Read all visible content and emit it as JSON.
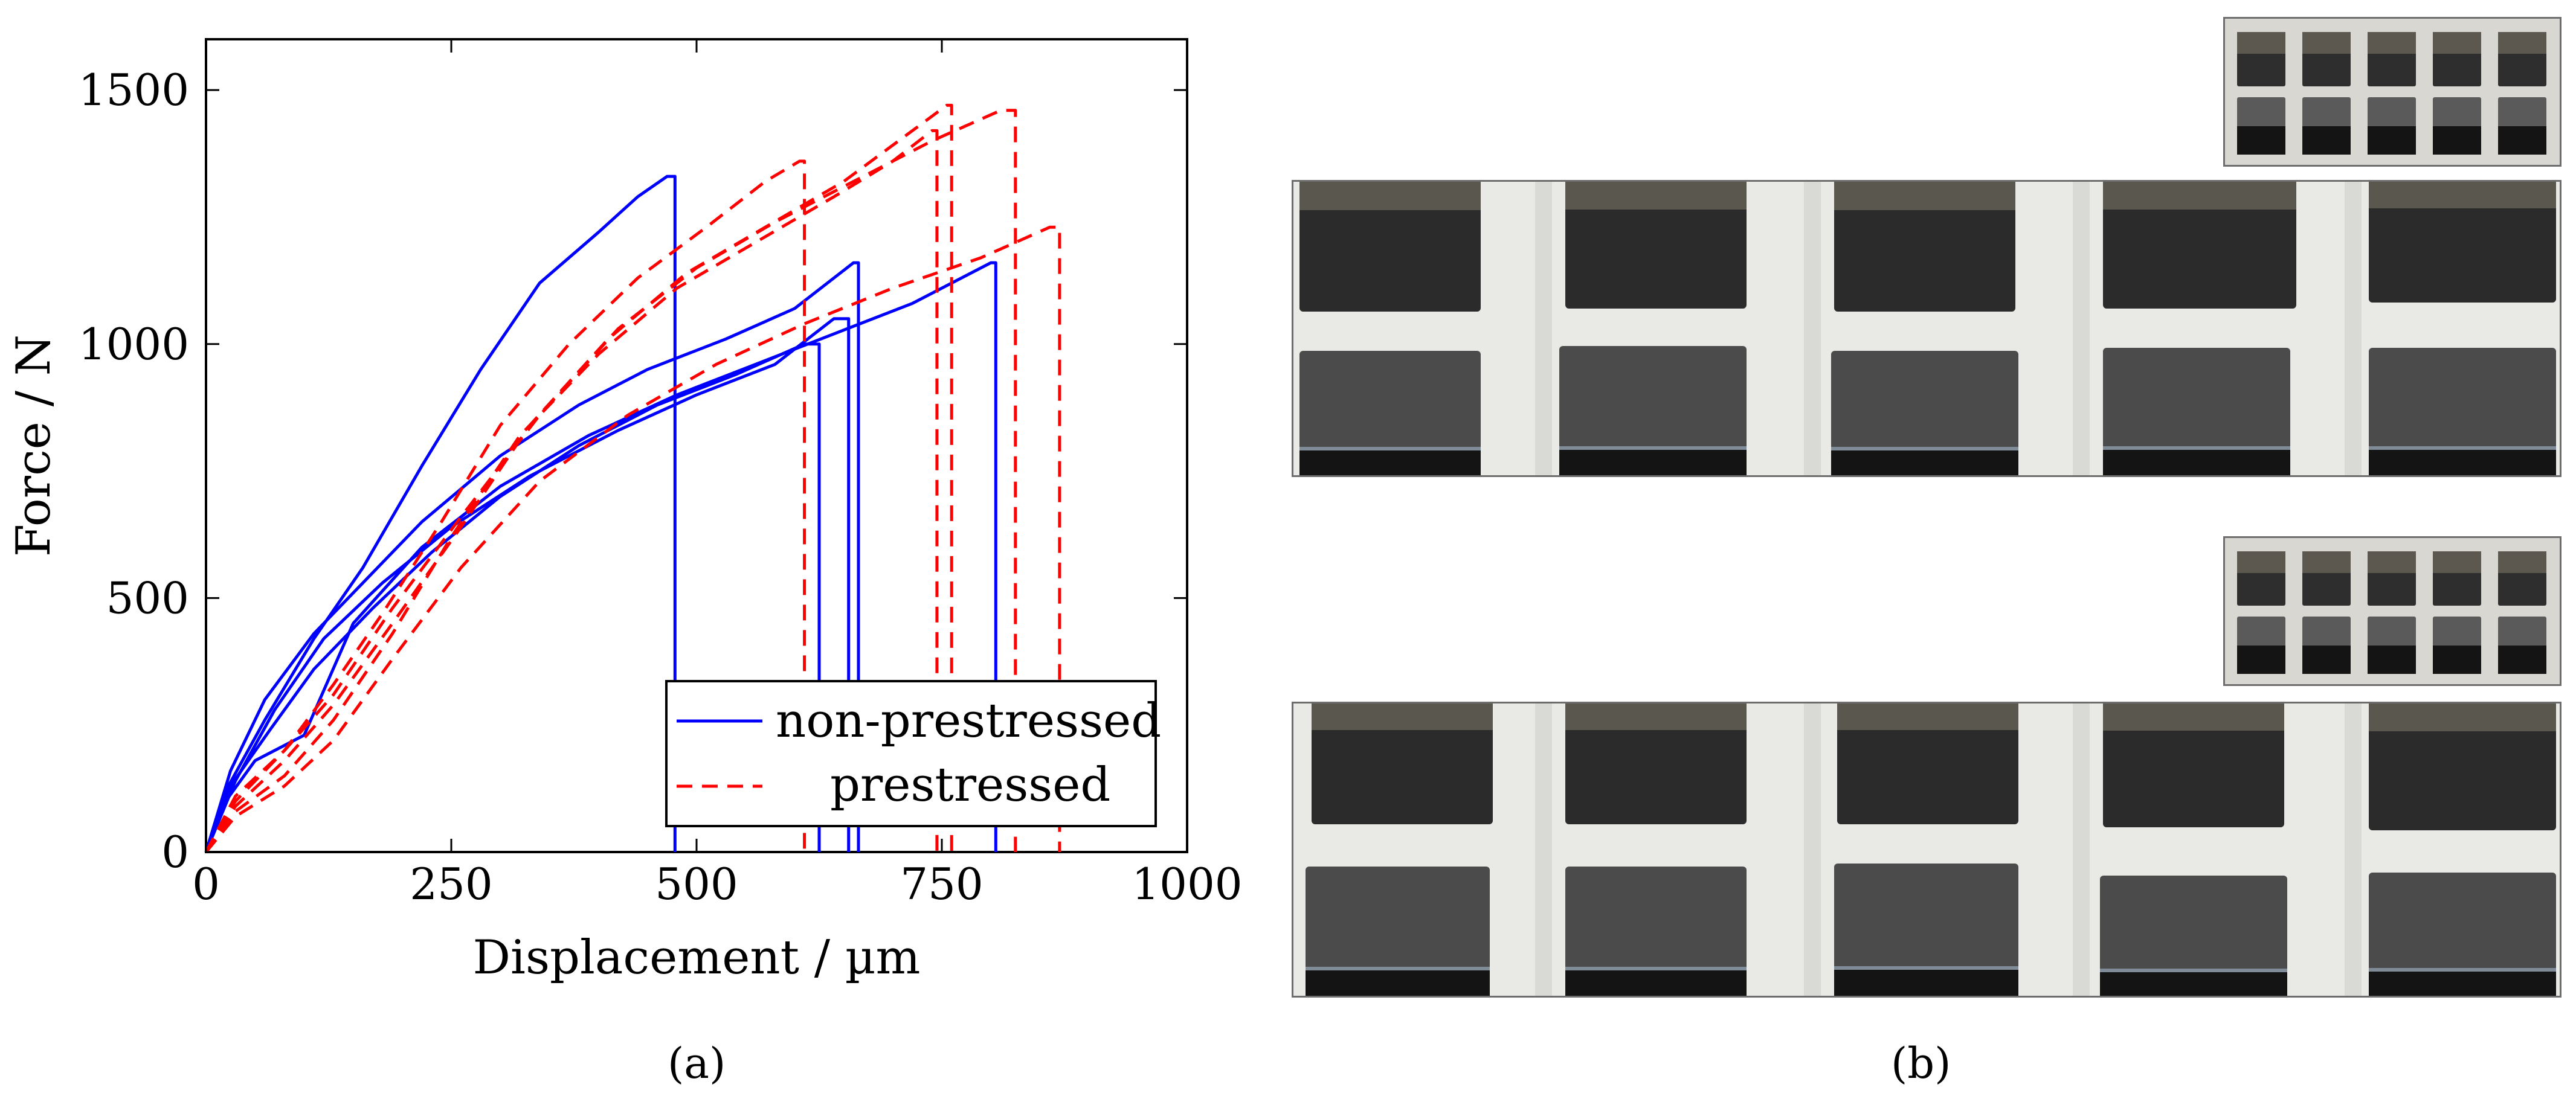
{
  "chart_data": {
    "type": "line",
    "xlabel": "Displacement / µm",
    "ylabel": "Force / N",
    "xlim": [
      0,
      1000
    ],
    "ylim": [
      0,
      1600
    ],
    "xticks": [
      0,
      250,
      500,
      750,
      1000
    ],
    "yticks": [
      0,
      500,
      1000,
      1500
    ],
    "grid": false,
    "legend_position": "bottom-right",
    "legend": [
      "non-prestressed",
      "prestressed"
    ],
    "colors": {
      "non_prestressed": "#0000ff",
      "prestressed": "#ff0000"
    },
    "series": [
      {
        "name": "non-prestressed",
        "group": "non-prestressed",
        "x": [
          0,
          20,
          60,
          110,
          160,
          220,
          280,
          340,
          400,
          440,
          470,
          478,
          478
        ],
        "y": [
          0,
          120,
          260,
          420,
          560,
          760,
          950,
          1120,
          1220,
          1290,
          1330,
          1330,
          0
        ]
      },
      {
        "name": "non-prestressed",
        "group": "non-prestressed",
        "x": [
          0,
          25,
          60,
          110,
          160,
          220,
          300,
          380,
          450,
          530,
          600,
          660,
          665,
          665
        ],
        "y": [
          0,
          160,
          300,
          430,
          530,
          650,
          780,
          880,
          950,
          1010,
          1070,
          1160,
          1160,
          0
        ]
      },
      {
        "name": "non-prestressed",
        "group": "non-prestressed",
        "x": [
          0,
          30,
          70,
          120,
          180,
          250,
          330,
          420,
          500,
          580,
          640,
          655,
          655
        ],
        "y": [
          0,
          140,
          280,
          420,
          530,
          640,
          740,
          830,
          900,
          960,
          1050,
          1050,
          0
        ]
      },
      {
        "name": "non-prestressed",
        "group": "non-prestressed",
        "x": [
          0,
          25,
          65,
          110,
          170,
          230,
          300,
          380,
          460,
          540,
          610,
          625,
          625
        ],
        "y": [
          0,
          130,
          240,
          360,
          480,
          590,
          700,
          800,
          880,
          940,
          1000,
          1000,
          0
        ]
      },
      {
        "name": "non-prestressed",
        "group": "non-prestressed",
        "x": [
          0,
          20,
          50,
          100,
          150,
          220,
          300,
          390,
          480,
          560,
          640,
          720,
          800,
          805,
          805
        ],
        "y": [
          0,
          100,
          180,
          230,
          450,
          600,
          720,
          820,
          900,
          960,
          1020,
          1080,
          1160,
          1160,
          0
        ]
      },
      {
        "name": "prestressed",
        "group": "prestressed",
        "x": [
          0,
          30,
          80,
          130,
          180,
          240,
          300,
          370,
          440,
          510,
          570,
          605,
          610,
          610
        ],
        "y": [
          0,
          100,
          200,
          330,
          470,
          650,
          840,
          1000,
          1130,
          1230,
          1320,
          1360,
          1360,
          0
        ]
      },
      {
        "name": "prestressed",
        "group": "prestressed",
        "x": [
          0,
          30,
          80,
          130,
          190,
          250,
          320,
          400,
          480,
          560,
          640,
          700,
          740,
          745,
          745
        ],
        "y": [
          0,
          80,
          150,
          260,
          430,
          620,
          820,
          980,
          1110,
          1200,
          1290,
          1360,
          1420,
          1420,
          0
        ]
      },
      {
        "name": "prestressed",
        "group": "prestressed",
        "x": [
          0,
          30,
          80,
          130,
          190,
          260,
          330,
          410,
          490,
          570,
          650,
          720,
          755,
          760,
          760
        ],
        "y": [
          0,
          90,
          180,
          290,
          450,
          640,
          840,
          1010,
          1140,
          1230,
          1320,
          1420,
          1470,
          1470,
          0
        ]
      },
      {
        "name": "prestressed",
        "group": "prestressed",
        "x": [
          0,
          30,
          80,
          130,
          190,
          260,
          340,
          420,
          500,
          580,
          660,
          740,
          810,
          825,
          825
        ],
        "y": [
          0,
          110,
          200,
          310,
          480,
          660,
          860,
          1030,
          1150,
          1240,
          1320,
          1400,
          1460,
          1460,
          0
        ]
      },
      {
        "name": "prestressed",
        "group": "prestressed",
        "x": [
          0,
          30,
          80,
          130,
          190,
          260,
          340,
          430,
          520,
          610,
          700,
          790,
          860,
          870,
          870
        ],
        "y": [
          0,
          70,
          130,
          220,
          380,
          560,
          730,
          860,
          960,
          1040,
          1110,
          1170,
          1230,
          1230,
          0
        ]
      }
    ]
  },
  "captions": {
    "a": "(a)",
    "b": "(b)"
  }
}
